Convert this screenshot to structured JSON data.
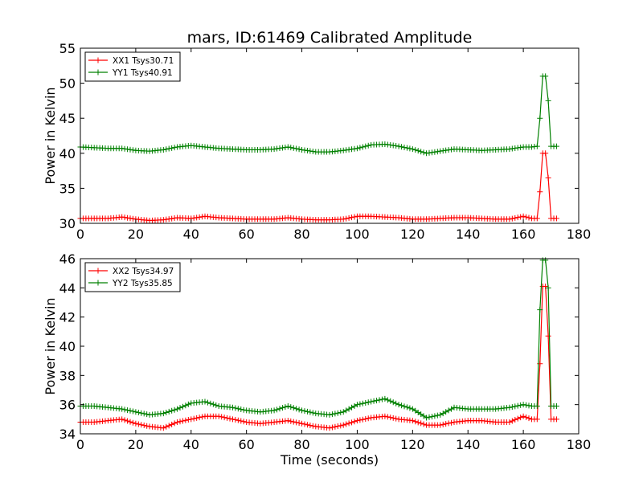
{
  "figure": {
    "title": "mars, ID:61469 Calibrated Amplitude",
    "xlabel": "Time (seconds)",
    "ylabel": "Power in Kelvin"
  },
  "chart_data": [
    {
      "type": "line",
      "title": "mars, ID:61469 Calibrated Amplitude",
      "xlabel": "",
      "ylabel": "Power in Kelvin",
      "xlim": [
        0,
        180
      ],
      "ylim": [
        30,
        55
      ],
      "xticks": [
        0,
        20,
        40,
        60,
        80,
        100,
        120,
        140,
        160,
        180
      ],
      "yticks": [
        30,
        35,
        40,
        45,
        50,
        55
      ],
      "legend": "top-left",
      "grid": false,
      "series": [
        {
          "name": "XX1 Tsys30.71",
          "color": "#ff0000",
          "x": [
            0,
            5,
            10,
            15,
            20,
            25,
            30,
            35,
            40,
            45,
            50,
            55,
            60,
            65,
            70,
            75,
            80,
            85,
            90,
            95,
            100,
            105,
            110,
            115,
            120,
            125,
            130,
            135,
            140,
            145,
            150,
            155,
            160,
            163,
            165,
            166,
            167,
            168,
            169,
            170,
            172
          ],
          "y": [
            30.7,
            30.7,
            30.7,
            30.9,
            30.6,
            30.4,
            30.5,
            30.8,
            30.7,
            31.0,
            30.8,
            30.7,
            30.6,
            30.6,
            30.6,
            30.8,
            30.6,
            30.5,
            30.5,
            30.6,
            31.0,
            31.0,
            30.9,
            30.8,
            30.6,
            30.6,
            30.7,
            30.8,
            30.8,
            30.7,
            30.6,
            30.6,
            31.0,
            30.7,
            30.7,
            34.5,
            40.0,
            40.0,
            36.5,
            30.7,
            30.7
          ]
        },
        {
          "name": "YY1 Tsys40.91",
          "color": "#008000",
          "x": [
            0,
            5,
            10,
            15,
            20,
            25,
            30,
            35,
            40,
            45,
            50,
            55,
            60,
            65,
            70,
            75,
            80,
            85,
            90,
            95,
            100,
            105,
            110,
            115,
            120,
            125,
            130,
            135,
            140,
            145,
            150,
            155,
            160,
            163,
            165,
            166,
            167,
            168,
            169,
            170,
            172
          ],
          "y": [
            40.9,
            40.8,
            40.7,
            40.7,
            40.4,
            40.3,
            40.5,
            40.9,
            41.1,
            40.9,
            40.7,
            40.6,
            40.5,
            40.5,
            40.6,
            40.9,
            40.5,
            40.2,
            40.2,
            40.4,
            40.7,
            41.2,
            41.3,
            41.0,
            40.6,
            40.0,
            40.3,
            40.6,
            40.5,
            40.4,
            40.5,
            40.6,
            40.9,
            40.9,
            41.0,
            45.0,
            51.0,
            51.0,
            47.5,
            41.0,
            41.0
          ]
        }
      ]
    },
    {
      "type": "line",
      "title": "",
      "xlabel": "Time (seconds)",
      "ylabel": "Power in Kelvin",
      "xlim": [
        0,
        180
      ],
      "ylim": [
        34,
        46
      ],
      "xticks": [
        0,
        20,
        40,
        60,
        80,
        100,
        120,
        140,
        160,
        180
      ],
      "yticks": [
        34,
        36,
        38,
        40,
        42,
        44,
        46
      ],
      "legend": "top-left",
      "grid": false,
      "series": [
        {
          "name": "XX2 Tsys34.97",
          "color": "#ff0000",
          "x": [
            0,
            5,
            10,
            15,
            20,
            25,
            30,
            35,
            40,
            45,
            50,
            55,
            60,
            65,
            70,
            75,
            80,
            85,
            90,
            95,
            100,
            105,
            110,
            115,
            120,
            125,
            130,
            135,
            140,
            145,
            150,
            155,
            160,
            163,
            165,
            166,
            167,
            168,
            169,
            170,
            172
          ],
          "y": [
            34.8,
            34.8,
            34.9,
            35.0,
            34.7,
            34.5,
            34.4,
            34.8,
            35.0,
            35.2,
            35.2,
            35.0,
            34.8,
            34.7,
            34.8,
            34.9,
            34.7,
            34.5,
            34.4,
            34.6,
            34.9,
            35.1,
            35.2,
            35.0,
            34.9,
            34.6,
            34.6,
            34.8,
            34.9,
            34.9,
            34.8,
            34.8,
            35.2,
            35.0,
            35.0,
            38.8,
            44.1,
            44.1,
            40.7,
            35.0,
            35.0
          ]
        },
        {
          "name": "YY2 Tsys35.85",
          "color": "#008000",
          "x": [
            0,
            5,
            10,
            15,
            20,
            25,
            30,
            35,
            40,
            45,
            50,
            55,
            60,
            65,
            70,
            75,
            80,
            85,
            90,
            95,
            100,
            105,
            110,
            115,
            120,
            125,
            130,
            135,
            140,
            145,
            150,
            155,
            160,
            163,
            165,
            166,
            167,
            168,
            169,
            170,
            172
          ],
          "y": [
            35.9,
            35.9,
            35.8,
            35.7,
            35.5,
            35.3,
            35.4,
            35.7,
            36.1,
            36.2,
            35.9,
            35.8,
            35.6,
            35.5,
            35.6,
            35.9,
            35.6,
            35.4,
            35.3,
            35.5,
            36.0,
            36.2,
            36.4,
            36.0,
            35.7,
            35.1,
            35.3,
            35.8,
            35.7,
            35.7,
            35.7,
            35.8,
            36.0,
            35.9,
            35.9,
            42.5,
            45.9,
            45.9,
            44.0,
            35.9,
            35.9
          ]
        }
      ]
    }
  ]
}
